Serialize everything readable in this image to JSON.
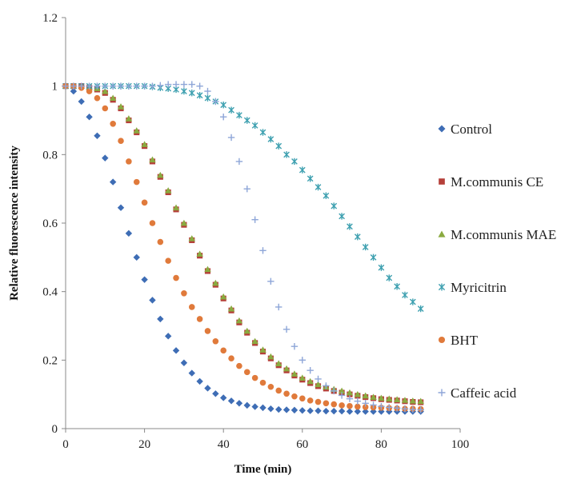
{
  "chart_data": {
    "type": "scatter",
    "xlabel": "Time (min)",
    "ylabel": "Relative fluorescence intensity",
    "xlim": [
      0,
      100
    ],
    "ylim": [
      0,
      1.2
    ],
    "x_ticks": [
      "0",
      "20",
      "40",
      "60",
      "80",
      "100"
    ],
    "y_ticks": [
      "0",
      "0.2",
      "0.4",
      "0.6",
      "0.8",
      "1",
      "1.2"
    ],
    "grid": false,
    "legend_position": "right",
    "x": [
      0,
      2,
      4,
      6,
      8,
      10,
      12,
      14,
      16,
      18,
      20,
      22,
      24,
      26,
      28,
      30,
      32,
      34,
      36,
      38,
      40,
      42,
      44,
      46,
      48,
      50,
      52,
      54,
      56,
      58,
      60,
      62,
      64,
      66,
      68,
      70,
      72,
      74,
      76,
      78,
      80,
      82,
      84,
      86,
      88,
      90
    ],
    "series": [
      {
        "name": "Control",
        "color": "#3e6db5",
        "marker": "diamond",
        "values": [
          1.0,
          0.985,
          0.955,
          0.91,
          0.855,
          0.79,
          0.72,
          0.645,
          0.57,
          0.5,
          0.435,
          0.375,
          0.32,
          0.27,
          0.228,
          0.192,
          0.162,
          0.138,
          0.118,
          0.102,
          0.09,
          0.081,
          0.074,
          0.068,
          0.064,
          0.061,
          0.058,
          0.056,
          0.055,
          0.054,
          0.053,
          0.052,
          0.052,
          0.051,
          0.051,
          0.051,
          0.05,
          0.05,
          0.05,
          0.05,
          0.05,
          0.05,
          0.05,
          0.05,
          0.05,
          0.05
        ]
      },
      {
        "name": "M.communis CE",
        "color": "#b5403a",
        "marker": "square",
        "values": [
          1.0,
          1.0,
          1.0,
          0.995,
          0.99,
          0.98,
          0.96,
          0.935,
          0.9,
          0.865,
          0.825,
          0.78,
          0.735,
          0.69,
          0.64,
          0.595,
          0.55,
          0.505,
          0.46,
          0.42,
          0.38,
          0.345,
          0.31,
          0.28,
          0.25,
          0.225,
          0.205,
          0.185,
          0.17,
          0.155,
          0.143,
          0.133,
          0.124,
          0.117,
          0.11,
          0.105,
          0.1,
          0.096,
          0.092,
          0.089,
          0.086,
          0.084,
          0.082,
          0.08,
          0.078,
          0.077
        ]
      },
      {
        "name": "M.communis MAE",
        "color": "#8aaa40",
        "marker": "triangle",
        "values": [
          1.0,
          1.0,
          1.0,
          0.997,
          0.993,
          0.985,
          0.965,
          0.94,
          0.905,
          0.87,
          0.83,
          0.785,
          0.74,
          0.695,
          0.645,
          0.6,
          0.555,
          0.51,
          0.465,
          0.425,
          0.385,
          0.35,
          0.315,
          0.285,
          0.255,
          0.23,
          0.21,
          0.19,
          0.175,
          0.16,
          0.148,
          0.138,
          0.129,
          0.122,
          0.115,
          0.11,
          0.105,
          0.1,
          0.096,
          0.092,
          0.089,
          0.087,
          0.085,
          0.083,
          0.081,
          0.08
        ]
      },
      {
        "name": "Myricitrin",
        "color": "#3ea0b0",
        "marker": "star",
        "values": [
          1.0,
          1.0,
          1.0,
          1.0,
          1.0,
          1.0,
          1.0,
          1.0,
          1.0,
          1.0,
          1.0,
          0.998,
          0.995,
          0.993,
          0.99,
          0.985,
          0.98,
          0.973,
          0.965,
          0.955,
          0.945,
          0.93,
          0.915,
          0.9,
          0.885,
          0.865,
          0.845,
          0.825,
          0.8,
          0.78,
          0.755,
          0.73,
          0.705,
          0.68,
          0.65,
          0.62,
          0.59,
          0.56,
          0.53,
          0.5,
          0.47,
          0.44,
          0.415,
          0.39,
          0.37,
          0.35
        ]
      },
      {
        "name": "BHT",
        "color": "#e07a3b",
        "marker": "circle",
        "values": [
          1.0,
          1.0,
          0.995,
          0.985,
          0.965,
          0.935,
          0.89,
          0.84,
          0.78,
          0.72,
          0.66,
          0.6,
          0.545,
          0.49,
          0.44,
          0.395,
          0.355,
          0.32,
          0.285,
          0.255,
          0.228,
          0.205,
          0.183,
          0.165,
          0.148,
          0.134,
          0.122,
          0.111,
          0.102,
          0.094,
          0.088,
          0.082,
          0.078,
          0.074,
          0.071,
          0.068,
          0.066,
          0.064,
          0.063,
          0.062,
          0.061,
          0.06,
          0.059,
          0.058,
          0.058,
          0.057
        ]
      },
      {
        "name": "Caffeic acid",
        "color": "#8ea6d8",
        "marker": "plus",
        "values": [
          1.0,
          1.0,
          1.0,
          1.0,
          1.0,
          1.0,
          1.0,
          1.0,
          1.0,
          1.0,
          1.0,
          1.0,
          1.002,
          1.005,
          1.005,
          1.005,
          1.005,
          1.0,
          0.985,
          0.955,
          0.91,
          0.85,
          0.78,
          0.7,
          0.61,
          0.52,
          0.43,
          0.355,
          0.29,
          0.24,
          0.2,
          0.17,
          0.145,
          0.125,
          0.11,
          0.097,
          0.087,
          0.08,
          0.074,
          0.069,
          0.065,
          0.062,
          0.06,
          0.058,
          0.056,
          0.055
        ]
      }
    ]
  }
}
